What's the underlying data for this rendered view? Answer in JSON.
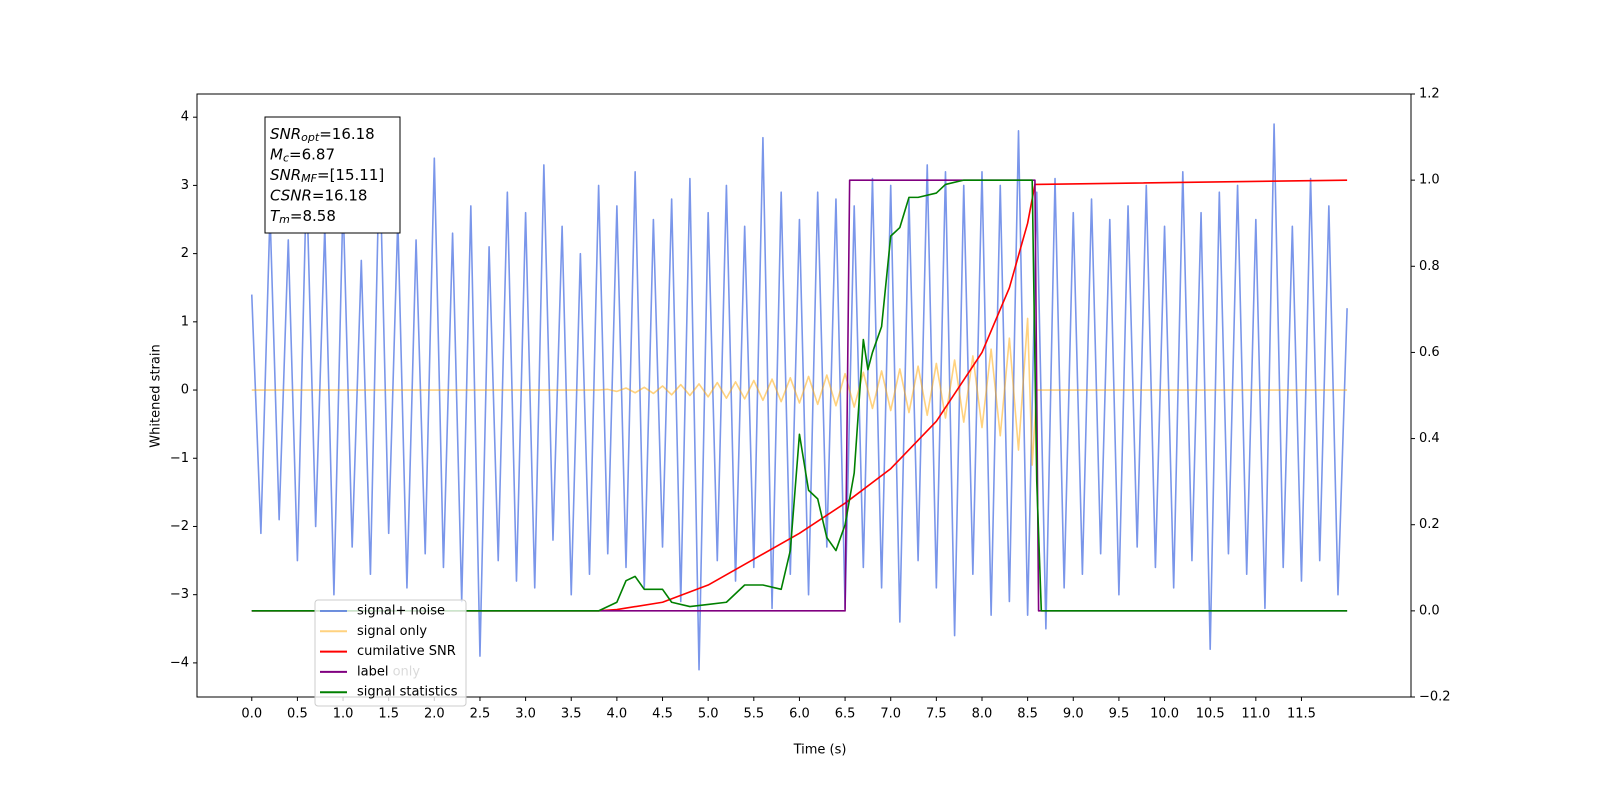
{
  "chart_data": {
    "type": "line",
    "x_label": "Time (s)",
    "y_label": "Whitened strain",
    "xlim": [
      -0.6,
      12.7
    ],
    "ylim": [
      -4.5,
      4.34
    ],
    "y2lim": [
      -0.2,
      1.2
    ],
    "xticks": [
      {
        "value": 0,
        "label": "0.0"
      },
      0.5,
      {
        "value": 1,
        "label": "1.0"
      },
      1.5,
      {
        "value": 2,
        "label": "2.0"
      },
      2.5,
      {
        "value": 3,
        "label": "3.0"
      },
      3.5,
      {
        "value": 4,
        "label": "4.0"
      },
      4.5,
      {
        "value": 5,
        "label": "5.0"
      },
      5.5,
      {
        "value": 6,
        "label": "6.0"
      },
      6.5,
      {
        "value": 7,
        "label": "7.0"
      },
      7.5,
      {
        "value": 8,
        "label": "8.0"
      },
      8.5,
      {
        "value": 9,
        "label": "9.0"
      },
      9.5,
      {
        "value": 10,
        "label": "10.0"
      },
      10.5,
      {
        "value": 11,
        "label": "11.0"
      },
      11.5
    ],
    "yticks": [
      {
        "value": -4,
        "label": "−4"
      },
      {
        "value": -3,
        "label": "−3"
      },
      {
        "value": -2,
        "label": "−2"
      },
      {
        "value": -1,
        "label": "−1"
      },
      0,
      1,
      2,
      3,
      4
    ],
    "y2ticks": [
      {
        "value": -0.2,
        "label": "−0.2"
      },
      {
        "value": 0,
        "label": "0.0"
      },
      0.2,
      0.4,
      0.6,
      0.8,
      {
        "value": 1,
        "label": "1.0"
      },
      1.2
    ],
    "annotation": [
      {
        "name": "SNR",
        "sub": "opt",
        "text": "=16.18"
      },
      {
        "name": "M",
        "sub": "c",
        "text": "=6.87"
      },
      {
        "name": "SNR",
        "sub": "MF",
        "text": "=[15.11]"
      },
      {
        "name": "CSNR",
        "sub": "",
        "text": "=16.18"
      },
      {
        "name": "T",
        "sub": "m",
        "text": "=8.58"
      }
    ],
    "hidden_legend_entry": "label only",
    "series": [
      {
        "name": "signal+ noise",
        "color": "#4169e1",
        "alpha": 0.7,
        "x": [
          0,
          0.1,
          0.2,
          0.3,
          0.4,
          0.5,
          0.6,
          0.7,
          0.8,
          0.9,
          1,
          1.1,
          1.2,
          1.3,
          1.4,
          1.5,
          1.6,
          1.7,
          1.8,
          1.9,
          2,
          2.1,
          2.2,
          2.3,
          2.4,
          2.5,
          2.6,
          2.7,
          2.8,
          2.9,
          3,
          3.1,
          3.2,
          3.3,
          3.4,
          3.5,
          3.6,
          3.7,
          3.8,
          3.9,
          4,
          4.1,
          4.2,
          4.3,
          4.4,
          4.5,
          4.6,
          4.7,
          4.8,
          4.9,
          5,
          5.1,
          5.2,
          5.3,
          5.4,
          5.5,
          5.6,
          5.7,
          5.8,
          5.9,
          6,
          6.1,
          6.2,
          6.3,
          6.4,
          6.5,
          6.6,
          6.7,
          6.8,
          6.9,
          7,
          7.1,
          7.2,
          7.3,
          7.4,
          7.5,
          7.6,
          7.7,
          7.8,
          7.9,
          8,
          8.1,
          8.2,
          8.3,
          8.4,
          8.5,
          8.6,
          8.7,
          8.8,
          8.9,
          9,
          9.1,
          9.2,
          9.3,
          9.4,
          9.5,
          9.6,
          9.7,
          9.8,
          9.9,
          10,
          10.1,
          10.2,
          10.3,
          10.4,
          10.5,
          10.6,
          10.7,
          10.8,
          10.9,
          11,
          11.1,
          11.2,
          11.3,
          11.4,
          11.5,
          11.6,
          11.7,
          11.8,
          11.9,
          12
        ],
        "values": [
          1.4,
          -2.1,
          2.6,
          -1.9,
          2.2,
          -2.5,
          3.1,
          -2.0,
          2.4,
          -3.0,
          2.8,
          -2.3,
          1.9,
          -2.7,
          3.5,
          -2.1,
          2.5,
          -2.9,
          2.2,
          -2.4,
          3.4,
          -2.6,
          2.3,
          -3.1,
          2.7,
          -3.9,
          2.1,
          -2.5,
          2.9,
          -2.8,
          2.6,
          -2.9,
          3.3,
          -2.2,
          2.4,
          -3.0,
          2.0,
          -2.7,
          3.0,
          -2.4,
          2.7,
          -2.6,
          3.2,
          -2.9,
          2.5,
          -2.3,
          2.8,
          -3.1,
          3.1,
          -4.1,
          2.6,
          -2.5,
          3.0,
          -2.8,
          2.4,
          -2.6,
          3.7,
          -3.2,
          2.9,
          -2.7,
          2.5,
          -3.0,
          2.9,
          -2.3,
          2.8,
          -3.2,
          2.7,
          -2.6,
          3.1,
          -2.9,
          3.0,
          -3.4,
          2.8,
          -2.5,
          3.3,
          -2.9,
          3.2,
          -3.6,
          3.0,
          -2.7,
          3.2,
          -3.3,
          3.0,
          -3.1,
          3.8,
          -3.3,
          2.9,
          -3.5,
          3.1,
          -2.9,
          2.6,
          -2.7,
          2.8,
          -2.4,
          2.5,
          -3.0,
          2.7,
          -2.3,
          3.0,
          -2.6,
          2.4,
          -2.9,
          3.2,
          -2.5,
          2.6,
          -3.8,
          2.9,
          -2.4,
          3.0,
          -2.7,
          2.5,
          -3.2,
          3.9,
          -2.6,
          2.4,
          -2.8,
          3.1,
          -2.5,
          2.7,
          -3.0,
          1.2
        ]
      },
      {
        "name": "signal only",
        "color": "#ffa500",
        "alpha": 0.5,
        "x": [
          0,
          3.8,
          3.9,
          4,
          4.1,
          4.2,
          4.3,
          4.4,
          4.5,
          4.6,
          4.7,
          4.8,
          4.9,
          5,
          5.1,
          5.2,
          5.3,
          5.4,
          5.5,
          5.6,
          5.7,
          5.8,
          5.9,
          6,
          6.1,
          6.2,
          6.3,
          6.4,
          6.5,
          6.6,
          6.7,
          6.8,
          6.9,
          7,
          7.1,
          7.2,
          7.3,
          7.4,
          7.5,
          7.6,
          7.7,
          7.8,
          7.9,
          8,
          8.1,
          8.2,
          8.3,
          8.4,
          8.5,
          8.55,
          8.6,
          12
        ],
        "values": [
          0,
          0,
          0.01,
          -0.02,
          0.03,
          -0.04,
          0.04,
          -0.05,
          0.06,
          -0.07,
          0.08,
          -0.08,
          0.09,
          -0.1,
          0.11,
          -0.12,
          0.12,
          -0.13,
          0.14,
          -0.15,
          0.16,
          -0.17,
          0.18,
          -0.19,
          0.2,
          -0.21,
          0.22,
          -0.23,
          0.24,
          -0.25,
          0.26,
          -0.27,
          0.28,
          -0.3,
          0.31,
          -0.33,
          0.35,
          -0.37,
          0.39,
          -0.41,
          0.44,
          -0.47,
          0.5,
          -0.55,
          0.6,
          -0.67,
          0.76,
          -0.88,
          1.05,
          -1.1,
          0,
          0
        ]
      },
      {
        "name": "cumilative SNR",
        "color": "#ff0000",
        "alpha": 1,
        "axis": "y2",
        "x": [
          0,
          3.8,
          4,
          4.5,
          5,
          5.5,
          6,
          6.5,
          7,
          7.5,
          8,
          8.3,
          8.5,
          8.58,
          12
        ],
        "values": [
          0,
          0,
          0.003,
          0.02,
          0.06,
          0.12,
          0.18,
          0.25,
          0.33,
          0.44,
          0.6,
          0.75,
          0.9,
          0.99,
          1
        ]
      },
      {
        "name": "label",
        "color": "#800080",
        "alpha": 1,
        "axis": "y2",
        "x": [
          0,
          6.5,
          6.55,
          8.58,
          8.62,
          12
        ],
        "values": [
          0,
          0,
          1,
          1,
          0,
          0
        ]
      },
      {
        "name": "signal statistics",
        "color": "#008000",
        "alpha": 1,
        "axis": "y2",
        "x": [
          0,
          3.8,
          4,
          4.1,
          4.2,
          4.3,
          4.5,
          4.6,
          4.8,
          5,
          5.2,
          5.4,
          5.6,
          5.8,
          5.9,
          6,
          6.1,
          6.2,
          6.3,
          6.4,
          6.5,
          6.6,
          6.7,
          6.75,
          6.8,
          6.9,
          7,
          7.1,
          7.2,
          7.3,
          7.5,
          7.6,
          7.8,
          8.55,
          8.6,
          8.65,
          12
        ],
        "values": [
          0,
          0,
          0.02,
          0.07,
          0.08,
          0.05,
          0.05,
          0.02,
          0.01,
          0.015,
          0.02,
          0.06,
          0.06,
          0.05,
          0.14,
          0.41,
          0.28,
          0.26,
          0.17,
          0.14,
          0.2,
          0.32,
          0.63,
          0.56,
          0.6,
          0.66,
          0.87,
          0.89,
          0.96,
          0.96,
          0.97,
          0.99,
          1,
          1,
          0.3,
          0,
          0
        ]
      }
    ]
  }
}
